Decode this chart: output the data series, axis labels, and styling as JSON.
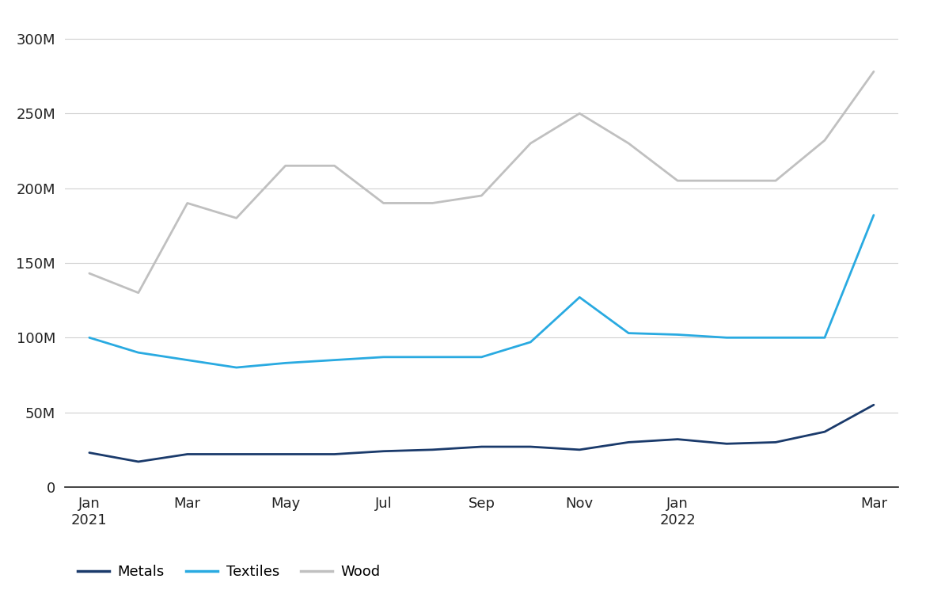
{
  "series": {
    "Metals": {
      "color": "#1a3a6b",
      "values": [
        23,
        17,
        22,
        22,
        22,
        22,
        24,
        25,
        27,
        27,
        25,
        30,
        32,
        29,
        30,
        37,
        55
      ]
    },
    "Textiles": {
      "color": "#29aae1",
      "values": [
        100,
        90,
        85,
        80,
        83,
        85,
        87,
        87,
        87,
        97,
        127,
        103,
        102,
        100,
        100,
        100,
        182
      ]
    },
    "Wood": {
      "color": "#c0c0c0",
      "values": [
        143,
        130,
        190,
        180,
        215,
        215,
        190,
        190,
        195,
        230,
        250,
        230,
        205,
        205,
        205,
        232,
        278
      ]
    }
  },
  "x_labels": [
    "Jan\n2021",
    "Mar",
    "May",
    "Jul",
    "Sep",
    "Nov",
    "Jan\n2022",
    "Mar"
  ],
  "x_tick_positions": [
    0,
    2,
    4,
    6,
    8,
    10,
    12,
    16
  ],
  "ylim": [
    0,
    310
  ],
  "yticks": [
    0,
    50,
    100,
    150,
    200,
    250,
    300
  ],
  "ytick_labels": [
    "0",
    "50M",
    "100M",
    "150M",
    "200M",
    "250M",
    "300M"
  ],
  "n_points": 17,
  "legend_order": [
    "Metals",
    "Textiles",
    "Wood"
  ],
  "background_color": "#ffffff",
  "grid_color": "#d0d0d0",
  "axis_color": "#222222",
  "tick_fontsize": 13,
  "legend_fontsize": 13,
  "linewidth": 2.0
}
